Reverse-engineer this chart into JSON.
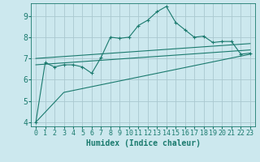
{
  "xlabel": "Humidex (Indice chaleur)",
  "bg_color": "#cce8ee",
  "grid_color": "#aac8d0",
  "line_color": "#1a7a6e",
  "xlim": [
    -0.5,
    23.5
  ],
  "ylim": [
    3.8,
    9.6
  ],
  "yticks": [
    4,
    5,
    6,
    7,
    8,
    9
  ],
  "xticks": [
    0,
    1,
    2,
    3,
    4,
    5,
    6,
    7,
    8,
    9,
    10,
    11,
    12,
    13,
    14,
    15,
    16,
    17,
    18,
    19,
    20,
    21,
    22,
    23
  ],
  "line1_x": [
    0,
    1,
    2,
    3,
    4,
    5,
    6,
    7,
    8,
    9,
    10,
    11,
    12,
    13,
    14,
    15,
    16,
    17,
    18,
    19,
    20,
    21,
    22,
    23
  ],
  "line1_y": [
    4.0,
    6.8,
    6.6,
    6.7,
    6.7,
    6.6,
    6.3,
    7.05,
    8.0,
    7.95,
    8.0,
    8.55,
    8.8,
    9.2,
    9.45,
    8.7,
    8.35,
    8.0,
    8.05,
    7.75,
    7.8,
    7.8,
    7.2,
    7.25
  ],
  "line2_x": [
    0,
    3,
    23
  ],
  "line2_y": [
    4.0,
    5.4,
    7.2
  ],
  "line3_x": [
    0,
    23
  ],
  "line3_y": [
    7.0,
    7.7
  ],
  "line4_x": [
    0,
    23
  ],
  "line4_y": [
    6.7,
    7.4
  ],
  "xlabel_fontsize": 7,
  "tick_fontsize": 6,
  "ytick_fontsize": 7
}
